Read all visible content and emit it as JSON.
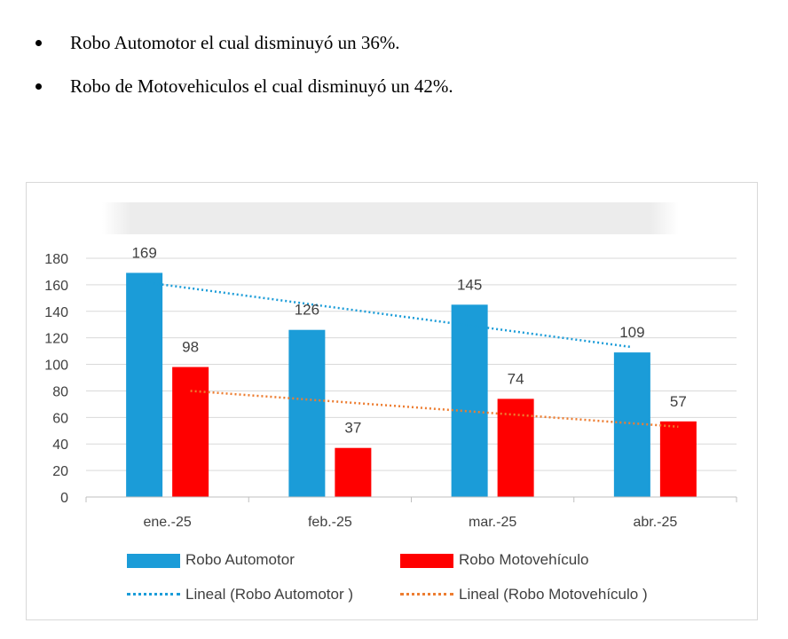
{
  "bullets": [
    "Robo Automotor el cual disminuyó un 36%.",
    "Robo de Motovehiculos el cual disminuyó un 42%."
  ],
  "chart_data": {
    "type": "bar",
    "title": "",
    "categories": [
      "ene.-25",
      "feb.-25",
      "mar.-25",
      "abr.-25"
    ],
    "series": [
      {
        "name": "Robo Automotor",
        "color": "#1b9cd8",
        "values": [
          169,
          126,
          145,
          109
        ]
      },
      {
        "name": "Robo Motovehículo",
        "color": "#ff0000",
        "values": [
          98,
          37,
          74,
          57
        ]
      }
    ],
    "trendlines": [
      {
        "name": "Lineal (Robo Automotor )",
        "color": "#1b9cd8",
        "series": 0,
        "start": 162,
        "end": 113
      },
      {
        "name": "Lineal (Robo Motovehículo )",
        "color": "#ed7d31",
        "series": 1,
        "start": 80,
        "end": 53
      }
    ],
    "yticks": [
      0,
      20,
      40,
      60,
      80,
      100,
      120,
      140,
      160,
      180
    ],
    "ylim": [
      0,
      180
    ],
    "grid": true,
    "legend": "bottom"
  }
}
